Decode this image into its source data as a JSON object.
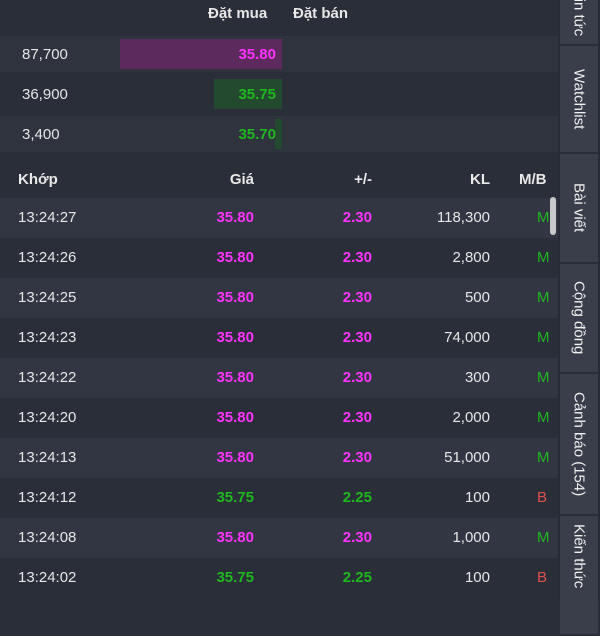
{
  "orderbook": {
    "header": {
      "bid": "Đặt mua",
      "ask": "Đặt bán"
    },
    "rows": [
      {
        "volume": "87,700",
        "price": "35.80",
        "color": "#ff33ff",
        "bar_color": "#5c2a5c",
        "bar_fraction": 1.0
      },
      {
        "volume": "36,900",
        "price": "35.75",
        "color": "#1fb81f",
        "bar_color": "#234a2f",
        "bar_fraction": 0.42
      },
      {
        "volume": "3,400",
        "price": "35.70",
        "color": "#1fb81f",
        "bar_color": "#234a2f",
        "bar_fraction": 0.04
      }
    ]
  },
  "trades": {
    "header": {
      "time": "Khớp",
      "price": "Giá",
      "change": "+/-",
      "volume": "KL",
      "side": "M/B"
    },
    "rows": [
      {
        "time": "13:24:27",
        "price": "35.80",
        "change": "2.30",
        "volume": "118,300",
        "side": "M"
      },
      {
        "time": "13:24:26",
        "price": "35.80",
        "change": "2.30",
        "volume": "2,800",
        "side": "M"
      },
      {
        "time": "13:24:25",
        "price": "35.80",
        "change": "2.30",
        "volume": "500",
        "side": "M"
      },
      {
        "time": "13:24:23",
        "price": "35.80",
        "change": "2.30",
        "volume": "74,000",
        "side": "M"
      },
      {
        "time": "13:24:22",
        "price": "35.80",
        "change": "2.30",
        "volume": "300",
        "side": "M"
      },
      {
        "time": "13:24:20",
        "price": "35.80",
        "change": "2.30",
        "volume": "2,000",
        "side": "M"
      },
      {
        "time": "13:24:13",
        "price": "35.80",
        "change": "2.30",
        "volume": "51,000",
        "side": "M"
      },
      {
        "time": "13:24:12",
        "price": "35.75",
        "change": "2.25",
        "volume": "100",
        "side": "B"
      },
      {
        "time": "13:24:08",
        "price": "35.80",
        "change": "2.30",
        "volume": "1,000",
        "side": "M"
      },
      {
        "time": "13:24:02",
        "price": "35.75",
        "change": "2.25",
        "volume": "100",
        "side": "B"
      }
    ]
  },
  "sidebar": {
    "tabs": [
      {
        "label": "Tin tức"
      },
      {
        "label": "Watchlist"
      },
      {
        "label": "Bài viết"
      },
      {
        "label": "Cộng đồng"
      },
      {
        "label": "Cảnh báo (154)"
      },
      {
        "label": "Kiến thức"
      }
    ]
  },
  "colors": {
    "up": "#ff33ff",
    "green": "#1fb81f",
    "sell": "#e0534b",
    "background": "#2a2e39"
  }
}
